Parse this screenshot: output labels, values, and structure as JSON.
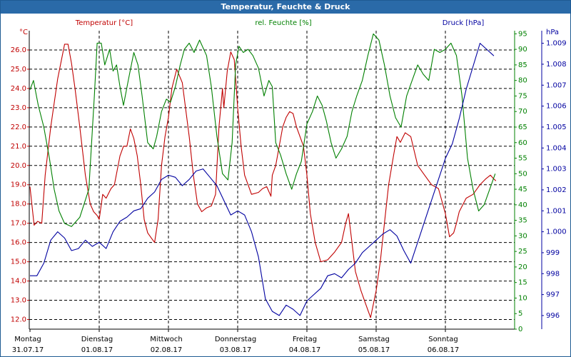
{
  "window": {
    "title": "Temperatur, Feuchte & Druck"
  },
  "colors": {
    "temperature": "#c00000",
    "humidity": "#008000",
    "pressure": "#0000a0",
    "grid": "#000000",
    "title_bar": "#2a6aa8"
  },
  "chart_data": {
    "type": "line",
    "title": "Temperatur, Feuchte & Druck",
    "grid": true,
    "grid_style": "dashed",
    "x_ticks": [
      {
        "day": "Montag",
        "date": "31.07.17",
        "x": 0
      },
      {
        "day": "Dienstag",
        "date": "01.08.17",
        "x": 1
      },
      {
        "day": "Mittwoch",
        "date": "02.08.17",
        "x": 2
      },
      {
        "day": "Donnerstag",
        "date": "03.08.17",
        "x": 3
      },
      {
        "day": "Freitag",
        "date": "04.08.17",
        "x": 4
      },
      {
        "day": "Samstag",
        "date": "05.08.17",
        "x": 5
      },
      {
        "day": "Sonntag",
        "date": "06.08.17",
        "x": 6
      }
    ],
    "xlim": [
      0,
      7
    ],
    "axes": {
      "temperature": {
        "label": "Temperatur [°C]",
        "unit": "°C",
        "ylim": [
          11.5,
          27.0
        ],
        "ticks": [
          "12.0",
          "13.0",
          "14.0",
          "15.0",
          "16.0",
          "17.0",
          "18.0",
          "19.0",
          "20.0",
          "21.0",
          "22.0",
          "23.0",
          "24.0",
          "25.0",
          "26.0"
        ],
        "side": "left"
      },
      "humidity": {
        "label": "rel. Feuchte [%]",
        "unit": "%",
        "ylim": [
          0,
          96
        ],
        "ticks": [
          "0",
          "5",
          "10",
          "15",
          "20",
          "25",
          "30",
          "35",
          "40",
          "45",
          "50",
          "55",
          "60",
          "65",
          "70",
          "75",
          "80",
          "85",
          "90",
          "95"
        ],
        "side": "right"
      },
      "pressure": {
        "label": "Druck [hPa]",
        "unit": "hPa",
        "ylim": [
          995.35,
          1009.6
        ],
        "ticks": [
          "996",
          "997",
          "998",
          "999",
          "1.000",
          "1.001",
          "1.002",
          "1.003",
          "1.004",
          "1.005",
          "1.006",
          "1.007",
          "1.008",
          "1.009"
        ],
        "side": "right"
      }
    },
    "series": [
      {
        "name": "Temperatur [°C]",
        "axis": "temperature",
        "x": [
          0,
          0.06,
          0.11,
          0.17,
          0.22,
          0.3,
          0.4,
          0.5,
          0.55,
          0.6,
          0.65,
          0.72,
          0.8,
          0.87,
          0.92,
          0.97,
          1.0,
          1.05,
          1.1,
          1.17,
          1.22,
          1.3,
          1.35,
          1.4,
          1.45,
          1.5,
          1.55,
          1.6,
          1.65,
          1.7,
          1.76,
          1.8,
          1.85,
          1.9,
          1.95,
          2.0,
          2.05,
          2.12,
          2.2,
          2.3,
          2.36,
          2.42,
          2.48,
          2.55,
          2.62,
          2.68,
          2.73,
          2.78,
          2.8,
          2.85,
          2.9,
          2.95,
          3.0,
          3.05,
          3.1,
          3.2,
          3.3,
          3.36,
          3.42,
          3.48,
          3.5,
          3.55,
          3.6,
          3.65,
          3.7,
          3.75,
          3.8,
          3.85,
          3.9,
          3.95,
          4.0,
          4.05,
          4.12,
          4.2,
          4.3,
          4.4,
          4.5,
          4.56,
          4.6,
          4.65,
          4.7,
          4.78,
          4.85,
          4.92,
          5.0,
          5.06,
          5.12,
          5.18,
          5.25,
          5.3,
          5.35,
          5.42,
          5.5,
          5.6,
          5.7,
          5.8,
          5.9,
          6.0,
          6.06,
          6.12,
          6.16,
          6.2,
          6.3,
          6.4,
          6.5,
          6.58,
          6.65,
          6.7,
          6.73
        ],
        "values": [
          18.9,
          16.9,
          17.1,
          17.0,
          19.5,
          22.0,
          24.5,
          26.3,
          26.3,
          25.3,
          24.0,
          22.0,
          19.5,
          18.0,
          17.6,
          17.4,
          17.2,
          18.5,
          18.3,
          18.8,
          19.0,
          20.5,
          21.0,
          21.0,
          21.9,
          21.4,
          20.5,
          19.0,
          17.2,
          16.5,
          16.2,
          16.0,
          17.2,
          20.0,
          21.5,
          22.5,
          24.0,
          25.0,
          24.3,
          21.5,
          19.5,
          18.0,
          17.6,
          17.8,
          17.9,
          18.5,
          22.0,
          24.0,
          23.0,
          24.9,
          25.9,
          25.5,
          23.0,
          21.0,
          19.5,
          18.5,
          18.6,
          18.8,
          18.9,
          18.4,
          19.5,
          20.0,
          21.0,
          22.0,
          22.5,
          22.8,
          22.7,
          22.0,
          21.5,
          21.0,
          19.5,
          17.5,
          16.0,
          15.0,
          15.1,
          15.5,
          16.0,
          17.0,
          17.5,
          16.0,
          14.5,
          13.5,
          12.8,
          12.1,
          13.5,
          15.0,
          17.0,
          19.0,
          20.5,
          21.5,
          21.2,
          21.7,
          21.5,
          20.0,
          19.5,
          19.0,
          18.8,
          17.5,
          16.3,
          16.5,
          17.0,
          17.6,
          18.3,
          18.5,
          19.0,
          19.3,
          19.5,
          19.3,
          19.2
        ]
      },
      {
        "name": "rel. Feuchte [%]",
        "axis": "humidity",
        "x": [
          0,
          0.05,
          0.12,
          0.2,
          0.28,
          0.35,
          0.42,
          0.5,
          0.6,
          0.72,
          0.85,
          0.93,
          0.97,
          1.03,
          1.08,
          1.15,
          1.2,
          1.25,
          1.3,
          1.35,
          1.42,
          1.5,
          1.56,
          1.62,
          1.7,
          1.78,
          1.83,
          1.9,
          1.97,
          2.03,
          2.1,
          2.17,
          2.23,
          2.3,
          2.37,
          2.45,
          2.55,
          2.62,
          2.7,
          2.78,
          2.86,
          2.92,
          2.97,
          3.02,
          3.08,
          3.15,
          3.22,
          3.3,
          3.38,
          3.45,
          3.5,
          3.55,
          3.62,
          3.7,
          3.78,
          3.85,
          3.92,
          4.0,
          4.08,
          4.15,
          4.22,
          4.28,
          4.35,
          4.42,
          4.5,
          4.58,
          4.65,
          4.72,
          4.8,
          4.88,
          4.96,
          5.04,
          5.12,
          5.2,
          5.28,
          5.36,
          5.44,
          5.52,
          5.6,
          5.68,
          5.76,
          5.84,
          5.92,
          6.0,
          6.08,
          6.16,
          6.24,
          6.32,
          6.4,
          6.48,
          6.56,
          6.64,
          6.72
        ],
        "values": [
          77,
          80,
          72,
          65,
          55,
          45,
          38,
          34,
          33,
          36,
          45,
          75,
          92,
          92,
          85,
          90,
          83,
          85,
          78,
          72,
          80,
          89,
          85,
          75,
          60,
          58,
          62,
          70,
          74,
          73,
          78,
          85,
          90,
          92,
          89,
          93,
          88,
          78,
          62,
          50,
          48,
          60,
          85,
          91,
          89,
          90,
          88,
          84,
          75,
          80,
          78,
          60,
          56,
          50,
          45,
          50,
          54,
          66,
          70,
          75,
          72,
          67,
          60,
          55,
          58,
          62,
          70,
          75,
          80,
          88,
          95,
          93,
          85,
          75,
          68,
          65,
          75,
          80,
          85,
          82,
          80,
          90,
          89,
          90,
          92,
          88,
          75,
          55,
          45,
          38,
          40,
          45,
          50
        ]
      },
      {
        "name": "Druck [hPa]",
        "axis": "pressure",
        "x": [
          0,
          0.1,
          0.2,
          0.3,
          0.4,
          0.5,
          0.6,
          0.7,
          0.8,
          0.9,
          1.0,
          1.1,
          1.2,
          1.3,
          1.4,
          1.5,
          1.6,
          1.7,
          1.8,
          1.9,
          2.0,
          2.1,
          2.2,
          2.3,
          2.4,
          2.5,
          2.6,
          2.7,
          2.8,
          2.9,
          3.0,
          3.1,
          3.2,
          3.3,
          3.4,
          3.5,
          3.6,
          3.7,
          3.8,
          3.9,
          4.0,
          4.1,
          4.2,
          4.3,
          4.4,
          4.5,
          4.6,
          4.7,
          4.8,
          4.9,
          5.0,
          5.1,
          5.2,
          5.3,
          5.4,
          5.5,
          5.6,
          5.7,
          5.8,
          5.9,
          6.0,
          6.1,
          6.2,
          6.3,
          6.4,
          6.5,
          6.6,
          6.7
        ],
        "values": [
          997.9,
          997.9,
          998.5,
          999.6,
          1000.0,
          999.7,
          999.1,
          999.2,
          999.6,
          999.3,
          999.5,
          999.2,
          1000.0,
          1000.5,
          1000.7,
          1001.0,
          1001.1,
          1001.6,
          1001.9,
          1002.5,
          1002.7,
          1002.6,
          1002.2,
          1002.5,
          1002.9,
          1003.0,
          1002.6,
          1002.2,
          1001.5,
          1000.8,
          1001.0,
          1000.8,
          1000.0,
          998.8,
          996.8,
          996.2,
          996.0,
          996.5,
          996.3,
          996.0,
          996.7,
          997.0,
          997.3,
          997.9,
          998.0,
          997.8,
          998.2,
          998.5,
          999.0,
          999.3,
          999.6,
          999.9,
          1000.1,
          999.8,
          999.1,
          998.5,
          999.5,
          1000.5,
          1001.5,
          1002.5,
          1003.5,
          1004.2,
          1005.4,
          1006.8,
          1007.9,
          1009.0,
          1008.7,
          1008.4
        ]
      }
    ]
  }
}
